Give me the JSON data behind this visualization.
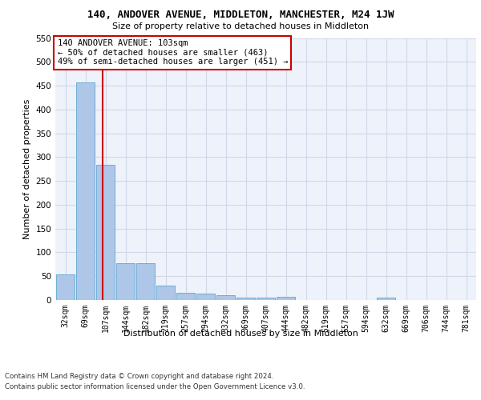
{
  "title": "140, ANDOVER AVENUE, MIDDLETON, MANCHESTER, M24 1JW",
  "subtitle": "Size of property relative to detached houses in Middleton",
  "xlabel": "Distribution of detached houses by size in Middleton",
  "ylabel": "Number of detached properties",
  "footer_line1": "Contains HM Land Registry data © Crown copyright and database right 2024.",
  "footer_line2": "Contains public sector information licensed under the Open Government Licence v3.0.",
  "bin_labels": [
    "32sqm",
    "69sqm",
    "107sqm",
    "144sqm",
    "182sqm",
    "219sqm",
    "257sqm",
    "294sqm",
    "332sqm",
    "369sqm",
    "407sqm",
    "444sqm",
    "482sqm",
    "519sqm",
    "557sqm",
    "594sqm",
    "632sqm",
    "669sqm",
    "706sqm",
    "744sqm",
    "781sqm"
  ],
  "bar_values": [
    53,
    457,
    284,
    78,
    78,
    30,
    15,
    14,
    10,
    5,
    5,
    6,
    0,
    0,
    0,
    0,
    5,
    0,
    0,
    0,
    0
  ],
  "bar_color": "#aec6e8",
  "bar_edge_color": "#6aaed6",
  "grid_color": "#d0d8e8",
  "bg_color": "#eef2fb",
  "property_line_x": 1.85,
  "property_line_color": "#cc0000",
  "annotation_text": "140 ANDOVER AVENUE: 103sqm\n← 50% of detached houses are smaller (463)\n49% of semi-detached houses are larger (451) →",
  "annotation_box_color": "#ffffff",
  "annotation_box_edge_color": "#cc0000",
  "ylim": [
    0,
    550
  ],
  "yticks": [
    0,
    50,
    100,
    150,
    200,
    250,
    300,
    350,
    400,
    450,
    500,
    550
  ]
}
